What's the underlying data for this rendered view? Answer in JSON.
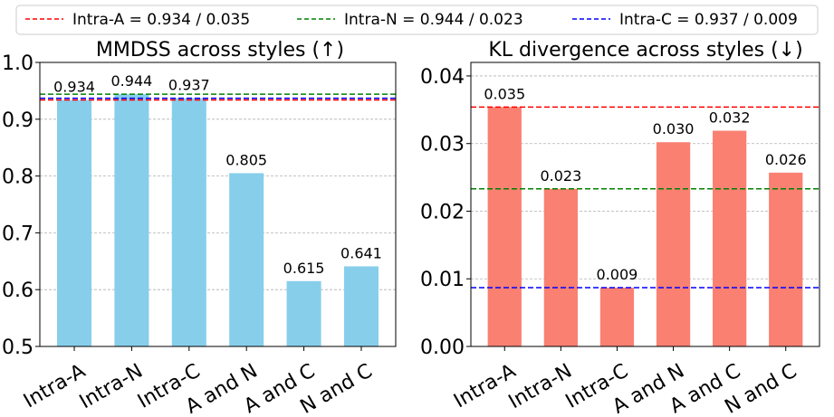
{
  "legend": {
    "placement": "top-center",
    "entries": [
      {
        "label": "Intra-A = 0.934 / 0.035",
        "color": "#ff0000"
      },
      {
        "label": "Intra-N = 0.944 / 0.023",
        "color": "#008000"
      },
      {
        "label": "Intra-C = 0.937 / 0.009",
        "color": "#0000ff"
      }
    ]
  },
  "chart_data": [
    {
      "type": "bar",
      "title": "MMDSS across styles (↑)",
      "xlabel": "",
      "ylabel": "",
      "categories": [
        "Intra-A",
        "Intra-N",
        "Intra-C",
        "A and N",
        "A and C",
        "N and C"
      ],
      "values": [
        0.934,
        0.944,
        0.937,
        0.805,
        0.615,
        0.641
      ],
      "data_labels": [
        "0.934",
        "0.944",
        "0.937",
        "0.805",
        "0.615",
        "0.641"
      ],
      "ylim": [
        0.5,
        1.0
      ],
      "yticks": [
        0.5,
        0.6,
        0.7,
        0.8,
        0.9,
        1.0
      ],
      "ytick_labels": [
        "0.5",
        "0.6",
        "0.7",
        "0.8",
        "0.9",
        "1.0"
      ],
      "bar_color": "#87ceeb",
      "grid": "y-dashed",
      "reference_lines": [
        {
          "value": 0.934,
          "color": "#ff0000"
        },
        {
          "value": 0.944,
          "color": "#008000"
        },
        {
          "value": 0.937,
          "color": "#0000ff"
        }
      ]
    },
    {
      "type": "bar",
      "title": "KL divergence across styles (↓)",
      "xlabel": "",
      "ylabel": "",
      "categories": [
        "Intra-A",
        "Intra-N",
        "Intra-C",
        "A and N",
        "A and C",
        "N and C"
      ],
      "values": [
        0.0354,
        0.0233,
        0.0087,
        0.0302,
        0.0319,
        0.0257
      ],
      "data_labels": [
        "0.035",
        "0.023",
        "0.009",
        "0.030",
        "0.032",
        "0.026"
      ],
      "ylim": [
        0,
        0.042
      ],
      "yticks": [
        0.0,
        0.01,
        0.02,
        0.03,
        0.04
      ],
      "ytick_labels": [
        "0.00",
        "0.01",
        "0.02",
        "0.03",
        "0.04"
      ],
      "bar_color": "#fa8072",
      "grid": "y-dashed",
      "reference_lines": [
        {
          "value": 0.0354,
          "color": "#ff0000"
        },
        {
          "value": 0.0233,
          "color": "#008000"
        },
        {
          "value": 0.0087,
          "color": "#0000ff"
        }
      ]
    }
  ]
}
